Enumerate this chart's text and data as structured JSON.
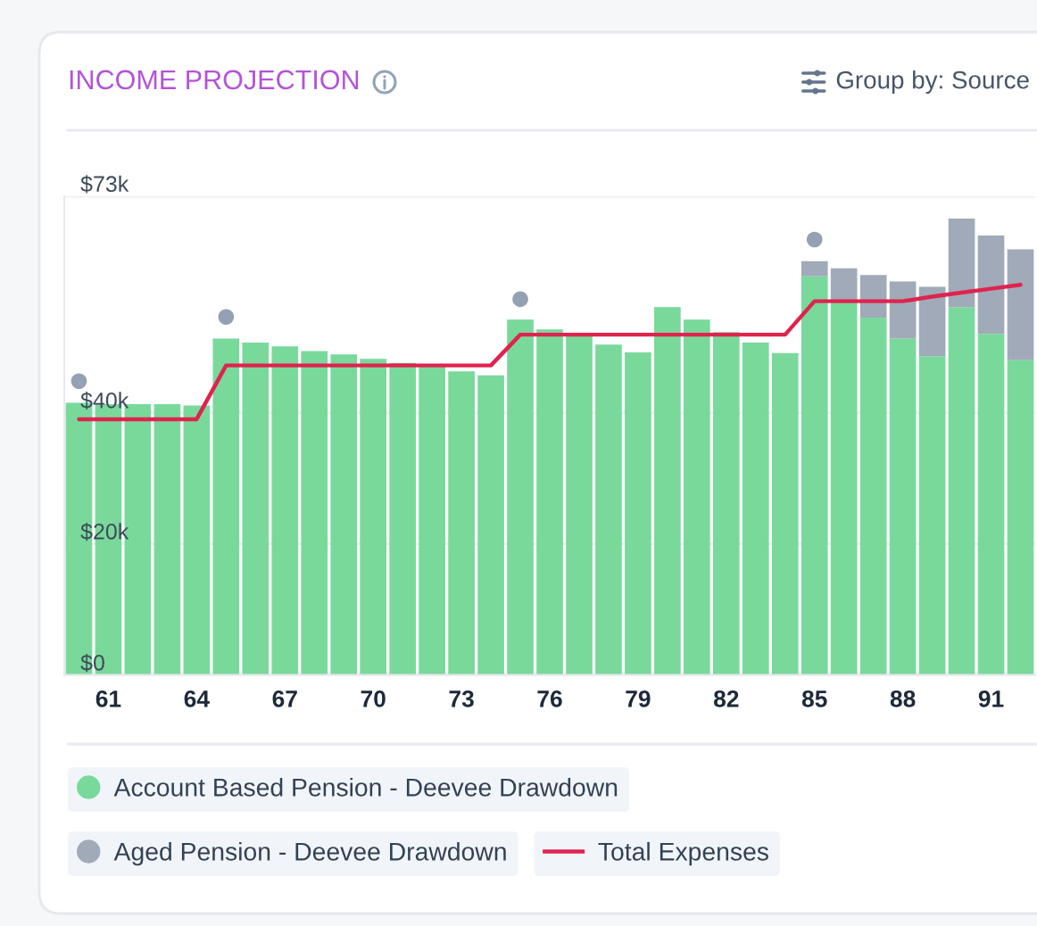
{
  "chart_data": {
    "type": "bar",
    "title": "INCOME PROJECTION",
    "annotations": [
      "Group by: Source"
    ],
    "x": [
      60,
      61,
      62,
      63,
      64,
      65,
      66,
      67,
      68,
      69,
      70,
      71,
      72,
      73,
      74,
      75,
      76,
      77,
      78,
      79,
      80,
      81,
      82,
      83,
      84,
      85,
      86,
      87,
      88,
      89,
      90,
      91,
      92
    ],
    "xlim": [
      59.5,
      92.5
    ],
    "xticks": [
      61,
      64,
      67,
      70,
      73,
      76,
      79,
      82,
      85,
      88,
      91
    ],
    "ylim": [
      0,
      73
    ],
    "yticks": [
      {
        "value": 0,
        "label": "$0"
      },
      {
        "value": 20,
        "label": "$20k"
      },
      {
        "value": 40,
        "label": "$40k"
      },
      {
        "value": 73,
        "label": "$73k"
      }
    ],
    "stacked": true,
    "grid": "y",
    "legend": "bottom",
    "series": [
      {
        "name": "Account Based Pension - Deevee Drawdown",
        "color": "#79d99b",
        "values": [
          41.5,
          41.3,
          41.3,
          41.3,
          41.1,
          51.3,
          50.7,
          50.1,
          49.4,
          48.9,
          48.2,
          47.6,
          47.1,
          46.3,
          45.7,
          54.2,
          52.7,
          51.7,
          50.4,
          49.2,
          56.1,
          54.2,
          52.3,
          50.7,
          49.1,
          60.8,
          57.0,
          54.5,
          51.3,
          48.6,
          56.1,
          52.0,
          48.0
        ]
      },
      {
        "name": "Aged Pension - Deevee Drawdown",
        "color": "#a0aab8",
        "values": [
          null,
          null,
          null,
          null,
          null,
          null,
          null,
          null,
          null,
          null,
          null,
          null,
          null,
          null,
          null,
          null,
          null,
          null,
          null,
          null,
          null,
          null,
          null,
          null,
          null,
          2.3,
          5.0,
          6.5,
          8.7,
          10.6,
          13.5,
          15.0,
          16.9
        ]
      },
      {
        "name": "Total Expenses",
        "type": "line",
        "color": "#e0234e",
        "line_style": "solid",
        "values": [
          39.0,
          39.0,
          39.0,
          39.0,
          39.0,
          47.2,
          47.2,
          47.2,
          47.2,
          47.2,
          47.2,
          47.2,
          47.2,
          47.2,
          47.2,
          51.9,
          51.9,
          51.9,
          51.9,
          51.9,
          51.9,
          51.9,
          51.9,
          51.9,
          51.9,
          57.0,
          57.0,
          57.0,
          57.0,
          57.7,
          58.3,
          58.9,
          59.5
        ]
      },
      {
        "type": "scatter",
        "color": "#94a0b4",
        "marker": "circle",
        "x": [
          60,
          65,
          75,
          85
        ],
        "values": [
          44.8,
          54.6,
          57.3,
          66.4
        ]
      }
    ]
  }
}
